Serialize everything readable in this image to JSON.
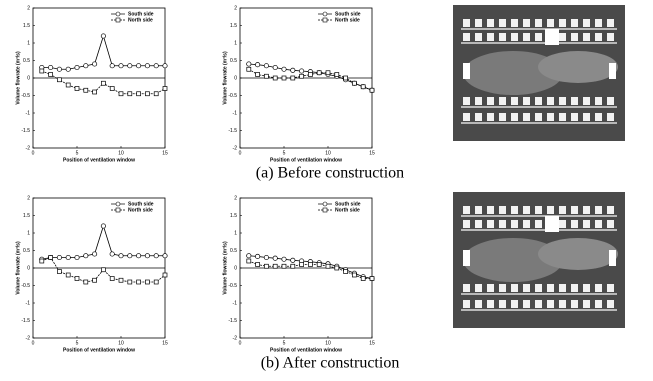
{
  "chart_data": [
    {
      "type": "line",
      "xlabel": "Position of ventilation window",
      "ylabel": "Volume flowrate (m³/s)",
      "x": [
        1,
        2,
        3,
        4,
        5,
        6,
        7,
        8,
        9,
        10,
        11,
        12,
        13,
        14,
        15
      ],
      "xlim": [
        0,
        15
      ],
      "xticks": [
        0,
        5,
        10,
        15
      ],
      "ylim": [
        -2,
        2
      ],
      "yticks": [
        -2,
        -1.5,
        -1,
        -0.5,
        0,
        0.5,
        1,
        1.5,
        2
      ],
      "series": [
        {
          "name": "South side",
          "color": "#000000",
          "values": [
            0.3,
            0.3,
            0.25,
            0.25,
            0.3,
            0.35,
            0.4,
            1.2,
            0.35,
            0.35,
            0.35,
            0.35,
            0.35,
            0.35,
            0.35
          ]
        },
        {
          "name": "North side",
          "color": "#000000",
          "values": [
            0.2,
            0.1,
            -0.05,
            -0.2,
            -0.3,
            -0.35,
            -0.4,
            -0.15,
            -0.3,
            -0.45,
            -0.45,
            -0.45,
            -0.45,
            -0.45,
            -0.3
          ]
        }
      ]
    },
    {
      "type": "line",
      "xlabel": "Position of ventilation window",
      "ylabel": "Volume flowrate (m³/s)",
      "x": [
        1,
        2,
        3,
        4,
        5,
        6,
        7,
        8,
        9,
        10,
        11,
        12,
        13,
        14,
        15
      ],
      "xlim": [
        0,
        15
      ],
      "xticks": [
        0,
        5,
        10,
        15
      ],
      "ylim": [
        -2,
        2
      ],
      "yticks": [
        -2,
        -1.5,
        -1,
        -0.5,
        0,
        0.5,
        1,
        1.5,
        2
      ],
      "series": [
        {
          "name": "South side",
          "color": "#000000",
          "values": [
            0.4,
            0.38,
            0.35,
            0.3,
            0.25,
            0.22,
            0.2,
            0.18,
            0.15,
            0.1,
            0.05,
            -0.05,
            -0.15,
            -0.25,
            -0.35
          ]
        },
        {
          "name": "North side",
          "color": "#000000",
          "values": [
            0.25,
            0.1,
            0.05,
            0,
            0,
            0,
            0.05,
            0.1,
            0.15,
            0.15,
            0.1,
            0,
            -0.15,
            -0.25,
            -0.35
          ]
        }
      ]
    },
    {
      "type": "line",
      "xlabel": "Position of ventilation window",
      "ylabel": "Volume flowrate (m³/s)",
      "x": [
        1,
        2,
        3,
        4,
        5,
        6,
        7,
        8,
        9,
        10,
        11,
        12,
        13,
        14,
        15
      ],
      "xlim": [
        0,
        15
      ],
      "xticks": [
        0,
        5,
        10,
        15
      ],
      "ylim": [
        -2,
        2
      ],
      "yticks": [
        -2,
        -1.5,
        -1,
        -0.5,
        0,
        0.5,
        1,
        1.5,
        2
      ],
      "series": [
        {
          "name": "South side",
          "color": "#000000",
          "values": [
            0.25,
            0.3,
            0.3,
            0.3,
            0.3,
            0.35,
            0.4,
            1.2,
            0.4,
            0.35,
            0.35,
            0.35,
            0.35,
            0.35,
            0.35
          ]
        },
        {
          "name": "North side",
          "color": "#000000",
          "values": [
            0.2,
            0.3,
            -0.1,
            -0.2,
            -0.3,
            -0.4,
            -0.35,
            -0.05,
            -0.3,
            -0.35,
            -0.4,
            -0.4,
            -0.4,
            -0.4,
            -0.2
          ]
        }
      ]
    },
    {
      "type": "line",
      "xlabel": "Position of ventilation window",
      "ylabel": "Volume flowrate (m³/s)",
      "x": [
        1,
        2,
        3,
        4,
        5,
        6,
        7,
        8,
        9,
        10,
        11,
        12,
        13,
        14,
        15
      ],
      "xlim": [
        0,
        15
      ],
      "xticks": [
        0,
        5,
        10,
        15
      ],
      "ylim": [
        -2,
        2
      ],
      "yticks": [
        -2,
        -1.5,
        -1,
        -0.5,
        0,
        0.5,
        1,
        1.5,
        2
      ],
      "series": [
        {
          "name": "South side",
          "color": "#000000",
          "values": [
            0.35,
            0.33,
            0.3,
            0.28,
            0.25,
            0.22,
            0.2,
            0.18,
            0.15,
            0.12,
            0.05,
            -0.05,
            -0.15,
            -0.25,
            -0.3
          ]
        },
        {
          "name": "North side",
          "color": "#000000",
          "values": [
            0.2,
            0.1,
            0.05,
            0.05,
            0.05,
            0.05,
            0.1,
            0.1,
            0.1,
            0.05,
            0,
            -0.1,
            -0.2,
            -0.3,
            -0.3
          ]
        }
      ]
    }
  ],
  "captions": [
    "(a) Before construction",
    "(b) After construction"
  ]
}
